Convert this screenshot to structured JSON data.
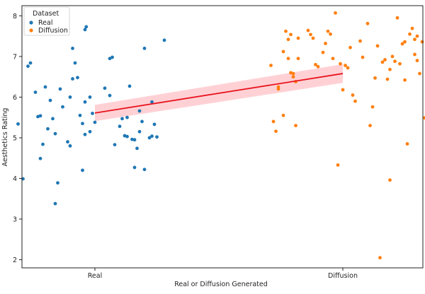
{
  "chart_data": {
    "type": "scatter",
    "title": "",
    "xlabel": "Real or Diffusion Generated",
    "ylabel": "Aesthetics Rating",
    "categories": [
      "Real",
      "Diffusion"
    ],
    "ylim": [
      1.8,
      8.25
    ],
    "yticks": [
      2,
      3,
      4,
      5,
      6,
      7,
      8
    ],
    "grid": false,
    "legend": {
      "title": "Dataset",
      "placement": "top-left",
      "entries": [
        {
          "name": "Real",
          "color": "#1f77b4"
        },
        {
          "name": "Diffusion",
          "color": "#ff7f0e"
        }
      ]
    },
    "series": [
      {
        "name": "Real",
        "color": "#1f77b4",
        "points": [
          [
            -0.31,
            5.34
          ],
          [
            -0.29,
            3.99
          ],
          [
            -0.27,
            6.76
          ],
          [
            -0.26,
            6.84
          ],
          [
            -0.24,
            6.12
          ],
          [
            -0.22,
            5.54
          ],
          [
            -0.21,
            4.84
          ],
          [
            -0.22,
            4.49
          ],
          [
            -0.2,
            6.25
          ],
          [
            -0.18,
            5.92
          ],
          [
            -0.19,
            5.22
          ],
          [
            -0.17,
            5.47
          ],
          [
            -0.16,
            5.1
          ],
          [
            -0.15,
            3.89
          ],
          [
            -0.14,
            6.2
          ],
          [
            -0.13,
            5.76
          ],
          [
            -0.11,
            4.9
          ],
          [
            -0.1,
            4.8
          ],
          [
            -0.1,
            6.0
          ],
          [
            -0.09,
            7.2
          ],
          [
            -0.08,
            6.84
          ],
          [
            -0.09,
            6.45
          ],
          [
            -0.07,
            6.48
          ],
          [
            -0.06,
            5.55
          ],
          [
            -0.05,
            5.35
          ],
          [
            -0.04,
            5.88
          ],
          [
            -0.04,
            7.66
          ],
          [
            -0.035,
            7.73
          ],
          [
            -0.04,
            5.08
          ],
          [
            -0.05,
            4.2
          ],
          [
            -0.02,
            5.15
          ],
          [
            -0.01,
            5.6
          ],
          [
            0.0,
            5.38
          ],
          [
            -0.02,
            6.0
          ],
          [
            0.04,
            6.22
          ],
          [
            0.06,
            6.95
          ],
          [
            0.07,
            6.98
          ],
          [
            0.08,
            4.83
          ],
          [
            0.1,
            5.28
          ],
          [
            0.11,
            5.47
          ],
          [
            0.12,
            5.05
          ],
          [
            0.13,
            5.03
          ],
          [
            0.13,
            5.5
          ],
          [
            0.14,
            6.27
          ],
          [
            0.15,
            4.96
          ],
          [
            0.16,
            4.27
          ],
          [
            0.17,
            4.74
          ],
          [
            0.18,
            5.15
          ],
          [
            0.19,
            5.4
          ],
          [
            0.18,
            5.66
          ],
          [
            0.2,
            7.2
          ],
          [
            0.2,
            4.22
          ],
          [
            0.22,
            5.0
          ],
          [
            0.23,
            5.04
          ],
          [
            0.23,
            5.88
          ],
          [
            0.24,
            5.33
          ],
          [
            0.25,
            5.02
          ],
          [
            0.28,
            7.4
          ],
          [
            0.16,
            4.95
          ],
          [
            -0.23,
            5.52
          ],
          [
            -0.16,
            3.38
          ],
          [
            0.06,
            6.04
          ]
        ],
        "fit": {
          "y_at_real": 5.61,
          "y_at_diffusion": 6.58,
          "ci_at_real": 0.2,
          "ci_at_diffusion": 0.23
        }
      },
      {
        "name": "Diffusion",
        "color": "#ff7f0e",
        "points": [
          [
            0.71,
            6.78
          ],
          [
            0.72,
            5.4
          ],
          [
            0.73,
            5.16
          ],
          [
            0.74,
            6.2
          ],
          [
            0.74,
            6.25
          ],
          [
            0.76,
            7.12
          ],
          [
            0.77,
            7.62
          ],
          [
            0.76,
            5.55
          ],
          [
            0.78,
            7.42
          ],
          [
            0.79,
            7.54
          ],
          [
            0.79,
            6.6
          ],
          [
            0.8,
            6.58
          ],
          [
            0.8,
            6.5
          ],
          [
            0.81,
            6.38
          ],
          [
            0.82,
            6.95
          ],
          [
            0.82,
            7.45
          ],
          [
            0.81,
            5.3
          ],
          [
            0.86,
            7.64
          ],
          [
            0.87,
            7.54
          ],
          [
            0.88,
            7.45
          ],
          [
            0.89,
            6.8
          ],
          [
            0.9,
            6.75
          ],
          [
            0.92,
            7.1
          ],
          [
            0.93,
            7.32
          ],
          [
            0.94,
            7.62
          ],
          [
            0.95,
            7.55
          ],
          [
            0.96,
            6.95
          ],
          [
            0.97,
            8.07
          ],
          [
            0.98,
            4.33
          ],
          [
            0.99,
            6.82
          ],
          [
            1.0,
            6.18
          ],
          [
            1.01,
            6.78
          ],
          [
            1.02,
            6.72
          ],
          [
            1.03,
            7.22
          ],
          [
            1.04,
            6.05
          ],
          [
            1.05,
            5.9
          ],
          [
            1.07,
            7.38
          ],
          [
            1.08,
            6.98
          ],
          [
            1.1,
            7.81
          ],
          [
            1.11,
            5.3
          ],
          [
            1.12,
            5.76
          ],
          [
            1.13,
            6.47
          ],
          [
            1.14,
            7.26
          ],
          [
            1.15,
            2.05
          ],
          [
            1.16,
            6.86
          ],
          [
            1.17,
            6.92
          ],
          [
            1.18,
            6.44
          ],
          [
            1.19,
            6.68
          ],
          [
            1.19,
            3.96
          ],
          [
            1.2,
            7.0
          ],
          [
            1.21,
            6.88
          ],
          [
            1.22,
            7.95
          ],
          [
            1.23,
            6.82
          ],
          [
            1.24,
            7.31
          ],
          [
            1.25,
            7.36
          ],
          [
            1.26,
            4.85
          ],
          [
            1.27,
            7.55
          ],
          [
            1.28,
            7.69
          ],
          [
            1.29,
            7.42
          ],
          [
            1.3,
            6.9
          ],
          [
            1.31,
            6.58
          ],
          [
            1.32,
            7.36
          ],
          [
            1.33,
            5.49
          ],
          [
            1.25,
            6.42
          ],
          [
            1.29,
            7.05
          ],
          [
            1.3,
            7.5
          ],
          [
            0.78,
            6.95
          ]
        ]
      }
    ]
  }
}
